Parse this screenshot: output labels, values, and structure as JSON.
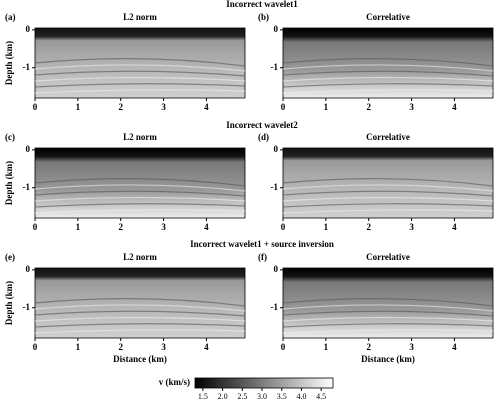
{
  "figure": {
    "rows": [
      {
        "title": "Incorrect wavelet1",
        "panels": [
          {
            "label": "(a)",
            "title": "L2 norm"
          },
          {
            "label": "(b)",
            "title": "Correlative"
          }
        ]
      },
      {
        "title": "Incorrect wavelet2",
        "panels": [
          {
            "label": "(c)",
            "title": "L2 norm"
          },
          {
            "label": "(d)",
            "title": "Correlative"
          }
        ]
      },
      {
        "title": "Incorrect wavelet1 + source inversion",
        "panels": [
          {
            "label": "(e)",
            "title": "L2 norm"
          },
          {
            "label": "(f)",
            "title": "Correlative"
          }
        ]
      }
    ],
    "x_axis": {
      "label": "Distance (km)",
      "lim": [
        0,
        4.9
      ],
      "ticks": [
        0,
        1,
        2,
        3,
        4
      ]
    },
    "y_axis": {
      "label": "Depth (km)",
      "lim": [
        -1.8,
        0.05
      ],
      "ticks": [
        0,
        -1
      ]
    },
    "colorbar": {
      "label": "v (km/s)",
      "lim": [
        1.3,
        4.8
      ],
      "ticks": [
        1.5,
        {
          "value": 2,
          "label": "2.0"
        },
        2.5,
        {
          "value": 3,
          "label": "3.0"
        },
        3.5,
        {
          "value": 4,
          "label": "4.0"
        },
        4.5
      ]
    }
  }
}
